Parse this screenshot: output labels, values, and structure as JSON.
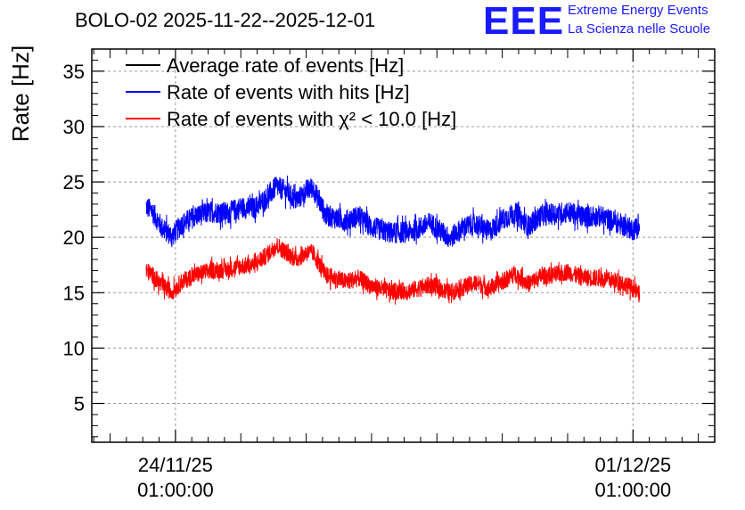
{
  "header": {
    "title": "BOLO-02 2025-11-22--2025-12-01",
    "logo_mark": "EEE",
    "logo_line1": "Extreme Energy Events",
    "logo_line2": "La Scienza nelle Scuole"
  },
  "chart_data": {
    "type": "line",
    "ylabel": "Rate [Hz]",
    "xlabel": "",
    "ylim": [
      1.5,
      37
    ],
    "x_range_days": [
      -1.28,
      8.25
    ],
    "yticks": [
      5,
      10,
      15,
      20,
      25,
      30,
      35
    ],
    "xticks": [
      {
        "at_day": 0,
        "line1": "24/11/25",
        "line2": "01:00:00"
      },
      {
        "at_day": 7,
        "line1": "01/12/25",
        "line2": "01:00:00"
      }
    ],
    "grid": true,
    "legend_position": "top-left",
    "legend": [
      {
        "name": "Average rate of events [Hz]",
        "color": "#000000"
      },
      {
        "name": "Rate of events with hits [Hz]",
        "color": "#0000ff"
      },
      {
        "name": "Rate of events with χ² < 10.0 [Hz]",
        "color": "#ff0000"
      }
    ],
    "series": [
      {
        "name": "Rate of events with hits [Hz]",
        "color": "#0000ff",
        "noise": 1.0,
        "x_days": [
          -0.45,
          -0.35,
          -0.2,
          -0.05,
          0.1,
          0.3,
          0.55,
          0.8,
          1.0,
          1.2,
          1.4,
          1.55,
          1.7,
          1.85,
          2.0,
          2.1,
          2.3,
          2.6,
          2.8,
          3.0,
          3.3,
          3.6,
          3.9,
          4.2,
          4.4,
          4.6,
          4.8,
          5.0,
          5.2,
          5.4,
          5.6,
          5.8,
          6.0,
          6.2,
          6.5,
          6.8,
          7.0,
          7.1
        ],
        "values": [
          22.8,
          22.3,
          20.8,
          20.1,
          21.2,
          21.9,
          22.3,
          22.2,
          22.7,
          22.6,
          23.6,
          24.6,
          24.1,
          23.3,
          24.2,
          24.5,
          22.0,
          21.5,
          21.9,
          20.9,
          20.4,
          20.5,
          21.3,
          19.9,
          20.9,
          21.2,
          20.5,
          21.6,
          22.2,
          21.0,
          22.0,
          22.1,
          22.3,
          21.9,
          21.9,
          21.2,
          20.7,
          20.9
        ]
      },
      {
        "name": "Rate of events with χ² < 10.0 [Hz]",
        "color": "#ff0000",
        "noise": 0.8,
        "x_days": [
          -0.45,
          -0.35,
          -0.2,
          -0.05,
          0.1,
          0.3,
          0.55,
          0.8,
          1.0,
          1.2,
          1.4,
          1.55,
          1.7,
          1.85,
          2.0,
          2.1,
          2.3,
          2.6,
          2.8,
          3.0,
          3.3,
          3.6,
          3.9,
          4.2,
          4.4,
          4.6,
          4.8,
          5.0,
          5.2,
          5.4,
          5.6,
          5.8,
          6.0,
          6.2,
          6.5,
          6.8,
          7.0,
          7.1
        ],
        "values": [
          17.0,
          16.6,
          15.6,
          15.1,
          16.0,
          16.6,
          17.0,
          17.1,
          17.4,
          17.5,
          18.4,
          19.3,
          18.6,
          18.0,
          18.6,
          18.6,
          16.6,
          16.0,
          16.3,
          15.6,
          15.1,
          15.2,
          15.7,
          15.0,
          15.5,
          15.9,
          15.4,
          16.0,
          16.7,
          15.8,
          16.5,
          16.6,
          16.9,
          16.4,
          16.3,
          16.0,
          15.4,
          14.8
        ]
      }
    ]
  }
}
